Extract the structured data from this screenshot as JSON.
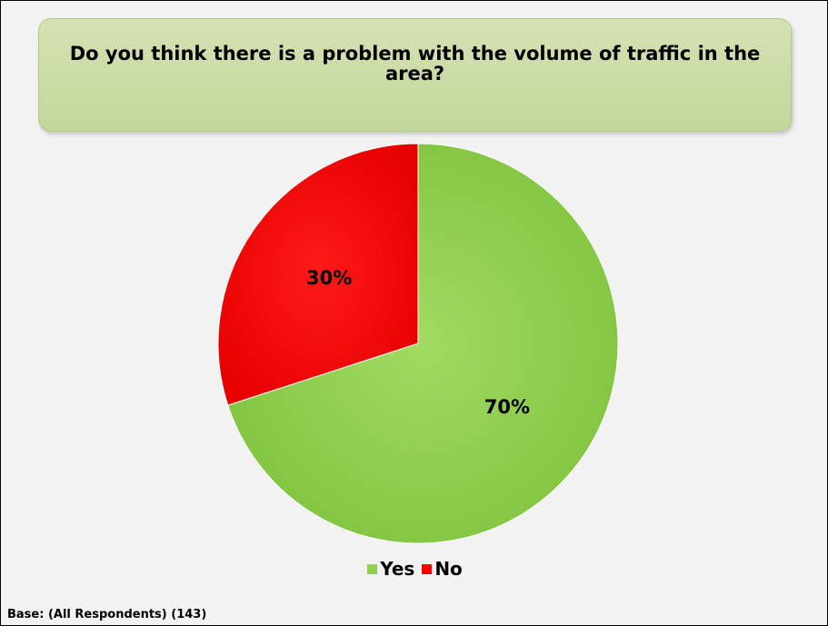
{
  "chart_data": {
    "type": "pie",
    "title": "Do you think there is a problem with the volume of traffic in the area?",
    "categories": [
      "Yes",
      "No"
    ],
    "values": [
      70,
      30
    ],
    "labels": [
      "70%",
      "30%"
    ],
    "colors": [
      "#92d050",
      "#ff0000"
    ],
    "start_angle_deg": 0,
    "direction": "clockwise",
    "legend_position": "bottom"
  },
  "legend": {
    "items": [
      {
        "label": "Yes",
        "color": "#92d050"
      },
      {
        "label": "No",
        "color": "#ff0000"
      }
    ]
  },
  "footer": {
    "base_note": "Base: (All Respondents) (143)"
  }
}
